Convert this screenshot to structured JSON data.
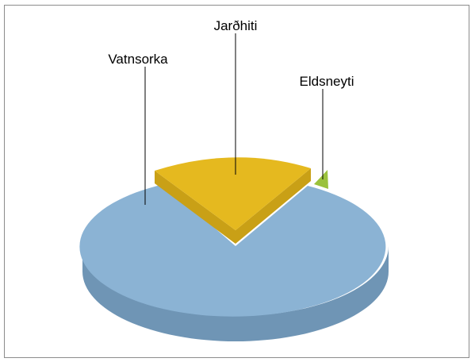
{
  "chart_data": {
    "type": "pie",
    "style": "3d-exploded",
    "title": "",
    "slices": [
      {
        "label": "Jarðhiti",
        "value": 25.0,
        "color": "#e5b91f",
        "side_color": "#c9a016",
        "exploded": true
      },
      {
        "label": "Eldsneyti",
        "value": 0.1,
        "color": "#9bc23c",
        "side_color": "#7fa12c",
        "exploded": true
      },
      {
        "label": "Vatnsorka",
        "value": 74.9,
        "color": "#8bb3d4",
        "side_color": "#6f95b5",
        "exploded": false
      }
    ],
    "legend": "none",
    "data_labels": "leader-lines"
  }
}
